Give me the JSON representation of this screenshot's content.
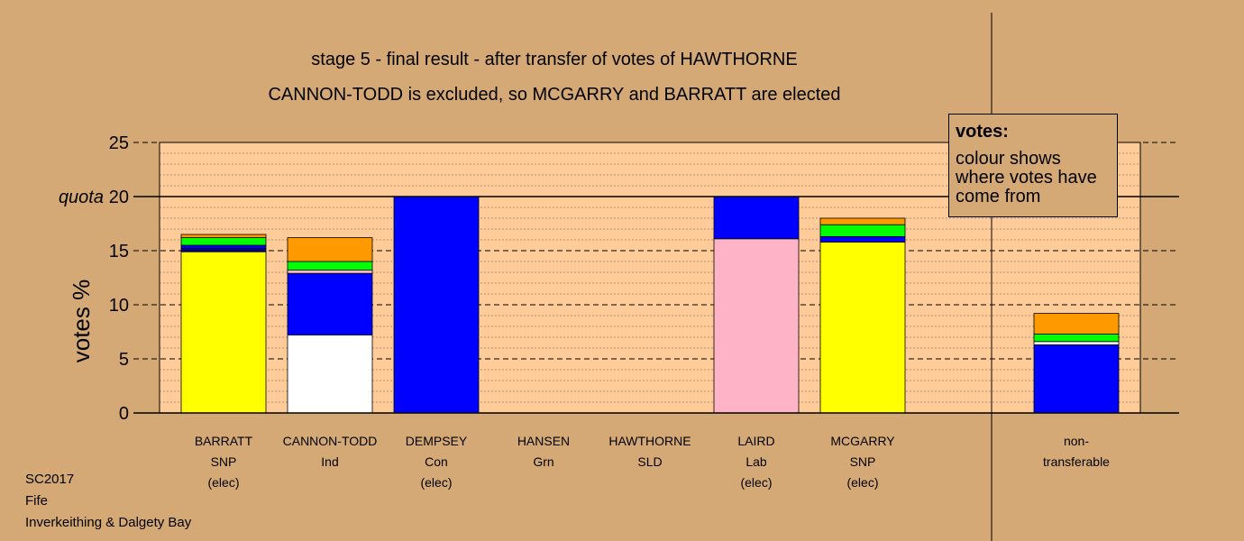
{
  "titles": {
    "line1": "stage 5 - final result - after transfer of votes of HAWTHORNE",
    "line2": "CANNON-TODD is excluded, so MCGARRY and BARRATT are elected"
  },
  "legend": {
    "title": "votes:",
    "text": "colour shows where votes have come from"
  },
  "footer": {
    "line1": "SC2017",
    "line2": "Fife",
    "line3": "Inverkeithing & Dalgety Bay"
  },
  "colors": {
    "background": "#d4a976",
    "plot": "#ffcc99",
    "SNP": "#ffff00",
    "Ind": "#ffffff",
    "Con": "#0000ff",
    "Lab": "#ffb3c6",
    "Grn": "#00ff00",
    "SLD": "#ff9900",
    "navy": "#000080"
  },
  "chart_data": {
    "type": "bar",
    "stacked": true,
    "ylabel": "votes %",
    "ylim": [
      0,
      25
    ],
    "yticks": [
      0,
      5,
      10,
      15,
      20,
      25
    ],
    "quota": {
      "label": "quota",
      "value": 20
    },
    "categories": [
      {
        "lines": [
          "BARRATT",
          "SNP",
          "(elec)"
        ],
        "segments": [
          {
            "source": "SNP",
            "value": 14.9
          },
          {
            "source": "navy",
            "value": 0.3
          },
          {
            "source": "Con",
            "value": 0.3
          },
          {
            "source": "Grn",
            "value": 0.7
          },
          {
            "source": "SLD",
            "value": 0.3
          }
        ]
      },
      {
        "lines": [
          "CANNON-TODD",
          "Ind"
        ],
        "segments": [
          {
            "source": "Ind",
            "value": 7.2
          },
          {
            "source": "Con",
            "value": 5.7
          },
          {
            "source": "Lab",
            "value": 0.3
          },
          {
            "source": "Grn",
            "value": 0.8
          },
          {
            "source": "SLD",
            "value": 2.2
          }
        ]
      },
      {
        "lines": [
          "DEMPSEY",
          "Con",
          "(elec)"
        ],
        "segments": [
          {
            "source": "Con",
            "value": 20.0
          }
        ]
      },
      {
        "lines": [
          "HANSEN",
          "Grn"
        ],
        "segments": []
      },
      {
        "lines": [
          "HAWTHORNE",
          "SLD"
        ],
        "segments": []
      },
      {
        "lines": [
          "LAIRD",
          "Lab",
          "(elec)"
        ],
        "segments": [
          {
            "source": "Lab",
            "value": 16.1
          },
          {
            "source": "Con",
            "value": 3.9
          }
        ]
      },
      {
        "lines": [
          "MCGARRY",
          "SNP",
          "(elec)"
        ],
        "segments": [
          {
            "source": "SNP",
            "value": 15.8
          },
          {
            "source": "Con",
            "value": 0.5
          },
          {
            "source": "Grn",
            "value": 1.1
          },
          {
            "source": "SLD",
            "value": 0.6
          }
        ]
      },
      {
        "lines": [
          "non-",
          "transferable"
        ],
        "segments": [
          {
            "source": "Con",
            "value": 6.3
          },
          {
            "source": "Ind",
            "value": 0.3
          },
          {
            "source": "Grn",
            "value": 0.7
          },
          {
            "source": "SLD",
            "value": 1.9
          }
        ]
      }
    ]
  }
}
